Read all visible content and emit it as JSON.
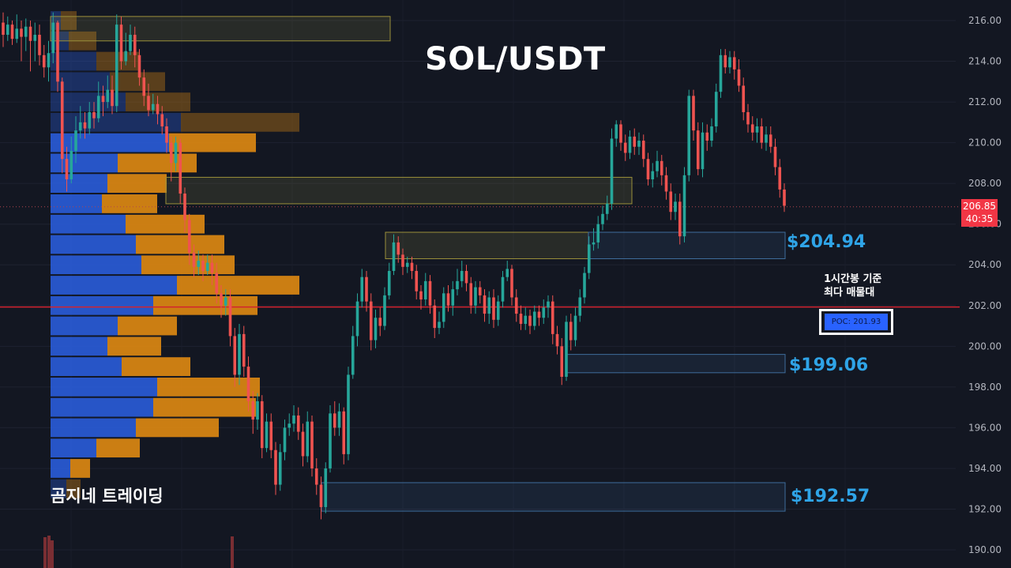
{
  "chart_data": {
    "type": "candlestick",
    "title": "SOL/USDT",
    "y_axis": {
      "ticks": [
        "216.00",
        "214.00",
        "212.00",
        "210.00",
        "208.00",
        "206.00",
        "204.00",
        "202.00",
        "200.00",
        "198.00",
        "196.00",
        "194.00",
        "192.00",
        "190.00"
      ],
      "tick_values": [
        216,
        214,
        212,
        210,
        208,
        206,
        204,
        202,
        200,
        198,
        196,
        194,
        192,
        190
      ],
      "range": [
        189.5,
        217
      ],
      "side": "right"
    },
    "last_price": {
      "value": "206.85",
      "countdown": "40:35",
      "price": 206.85
    },
    "poc": {
      "label": "POC: 201.93",
      "price": 201.93,
      "note_line1": "1시간봉 기준",
      "note_line2": "최다 매물대"
    },
    "levels": [
      {
        "label": "$204.94",
        "price": 204.94
      },
      {
        "label": "$199.06",
        "price": 199.06
      },
      {
        "label": "$192.57",
        "price": 192.57
      }
    ],
    "zones": [
      {
        "kind": "resistance",
        "from": 215.0,
        "to": 216.2
      },
      {
        "kind": "resistance",
        "from": 207.0,
        "to": 208.3
      },
      {
        "kind": "resistance",
        "from": 204.3,
        "to": 205.6
      },
      {
        "kind": "support",
        "from": 204.3,
        "to": 205.6
      },
      {
        "kind": "support",
        "from": 198.7,
        "to": 199.6
      },
      {
        "kind": "support",
        "from": 191.9,
        "to": 193.3
      }
    ],
    "volume_profile": [
      {
        "price": 216.0,
        "buy": 13,
        "sell": 20
      },
      {
        "price": 215.0,
        "buy": 23,
        "sell": 35
      },
      {
        "price": 214.0,
        "buy": 58,
        "sell": 55
      },
      {
        "price": 213.0,
        "buy": 75,
        "sell": 70
      },
      {
        "price": 212.0,
        "buy": 95,
        "sell": 82
      },
      {
        "price": 211.0,
        "buy": 165,
        "sell": 150
      },
      {
        "price": 210.0,
        "buy": 150,
        "sell": 110
      },
      {
        "price": 209.0,
        "buy": 85,
        "sell": 100
      },
      {
        "price": 208.0,
        "buy": 72,
        "sell": 75
      },
      {
        "price": 207.0,
        "buy": 65,
        "sell": 70
      },
      {
        "price": 206.0,
        "buy": 95,
        "sell": 100
      },
      {
        "price": 205.0,
        "buy": 108,
        "sell": 112
      },
      {
        "price": 204.0,
        "buy": 115,
        "sell": 118
      },
      {
        "price": 203.0,
        "buy": 160,
        "sell": 155
      },
      {
        "price": 202.0,
        "buy": 130,
        "sell": 132
      },
      {
        "price": 201.0,
        "buy": 85,
        "sell": 75
      },
      {
        "price": 200.0,
        "buy": 72,
        "sell": 68
      },
      {
        "price": 199.0,
        "buy": 90,
        "sell": 87
      },
      {
        "price": 198.0,
        "buy": 135,
        "sell": 130
      },
      {
        "price": 197.0,
        "buy": 130,
        "sell": 130
      },
      {
        "price": 196.0,
        "buy": 108,
        "sell": 105
      },
      {
        "price": 195.0,
        "buy": 58,
        "sell": 55
      },
      {
        "price": 194.0,
        "buy": 25,
        "sell": 25
      },
      {
        "price": 193.0,
        "buy": 20,
        "sell": 18
      }
    ],
    "candles": [
      [
        215.9,
        215.3,
        216.4,
        214.7
      ],
      [
        215.3,
        215.8,
        216.2,
        215.0
      ],
      [
        215.8,
        215.1,
        216.0,
        214.8
      ],
      [
        215.1,
        215.6,
        216.3,
        214.9
      ],
      [
        215.6,
        215.2,
        216.0,
        214.0
      ],
      [
        215.2,
        215.7,
        216.1,
        214.5
      ],
      [
        215.7,
        215.0,
        216.0,
        213.5
      ],
      [
        215.0,
        215.3,
        215.9,
        214.0
      ],
      [
        215.3,
        214.3,
        215.8,
        213.8
      ],
      [
        214.3,
        213.7,
        214.8,
        213.2
      ],
      [
        213.7,
        214.4,
        215.0,
        213.0
      ],
      [
        214.4,
        215.9,
        216.4,
        213.9
      ],
      [
        215.9,
        213.0,
        216.0,
        212.5
      ],
      [
        213.0,
        209.2,
        213.2,
        208.5
      ],
      [
        209.2,
        208.2,
        209.8,
        207.6
      ],
      [
        208.2,
        209.6,
        210.3,
        208.0
      ],
      [
        209.6,
        210.6,
        211.3,
        209.0
      ],
      [
        210.6,
        211.0,
        211.8,
        210.2
      ],
      [
        211.0,
        210.7,
        211.5,
        210.2
      ],
      [
        210.7,
        211.5,
        212.0,
        210.4
      ],
      [
        211.5,
        211.2,
        212.0,
        210.7
      ],
      [
        211.2,
        212.3,
        213.0,
        211.0
      ],
      [
        212.3,
        212.0,
        212.8,
        211.3
      ],
      [
        212.0,
        212.6,
        213.3,
        211.7
      ],
      [
        212.6,
        211.8,
        213.3,
        211.4
      ],
      [
        211.8,
        215.8,
        216.3,
        211.5
      ],
      [
        215.8,
        214.0,
        216.2,
        213.6
      ],
      [
        214.0,
        214.5,
        215.4,
        213.8
      ],
      [
        214.5,
        215.3,
        215.8,
        214.3
      ],
      [
        215.3,
        214.3,
        215.7,
        213.7
      ],
      [
        214.3,
        213.2,
        214.6,
        212.8
      ],
      [
        213.2,
        212.3,
        213.6,
        211.8
      ],
      [
        212.3,
        211.6,
        212.9,
        211.3
      ],
      [
        211.6,
        211.9,
        212.4,
        211.4
      ],
      [
        211.9,
        211.4,
        212.3,
        210.9
      ],
      [
        211.4,
        210.8,
        211.8,
        210.4
      ],
      [
        210.8,
        210.0,
        211.2,
        209.5
      ],
      [
        210.0,
        209.0,
        210.3,
        208.1
      ],
      [
        209.0,
        210.0,
        210.3,
        208.6
      ],
      [
        210.0,
        207.5,
        210.2,
        207.0
      ],
      [
        207.5,
        206.2,
        207.8,
        205.6
      ],
      [
        206.2,
        204.6,
        206.5,
        204.0
      ],
      [
        204.6,
        203.9,
        205.0,
        203.4
      ],
      [
        203.9,
        204.2,
        204.7,
        203.5
      ],
      [
        204.2,
        203.7,
        204.5,
        203.2
      ],
      [
        203.7,
        204.1,
        204.5,
        203.5
      ],
      [
        204.1,
        203.6,
        204.5,
        203.0
      ],
      [
        203.6,
        202.6,
        204.1,
        202.1
      ],
      [
        202.6,
        202.0,
        203.0,
        201.4
      ],
      [
        202.0,
        202.4,
        202.8,
        201.5
      ],
      [
        202.4,
        200.5,
        202.8,
        200.0
      ],
      [
        200.5,
        198.6,
        200.9,
        198.0
      ],
      [
        198.6,
        200.6,
        201.1,
        198.1
      ],
      [
        200.6,
        199.0,
        201.0,
        198.5
      ],
      [
        199.0,
        197.3,
        199.5,
        196.8
      ],
      [
        197.3,
        196.4,
        197.8,
        195.7
      ],
      [
        196.4,
        197.3,
        197.7,
        195.9
      ],
      [
        197.3,
        195.0,
        197.6,
        194.5
      ],
      [
        195.0,
        196.3,
        196.7,
        194.8
      ],
      [
        196.3,
        194.9,
        196.7,
        194.5
      ],
      [
        194.9,
        193.2,
        195.3,
        192.7
      ],
      [
        193.2,
        194.8,
        195.2,
        192.9
      ],
      [
        194.8,
        196.0,
        196.4,
        194.4
      ],
      [
        196.0,
        196.2,
        196.7,
        195.6
      ],
      [
        196.2,
        196.6,
        197.1,
        195.8
      ],
      [
        196.6,
        195.8,
        197.0,
        195.4
      ],
      [
        195.8,
        194.6,
        196.2,
        194.1
      ],
      [
        194.6,
        196.3,
        196.8,
        194.3
      ],
      [
        196.3,
        194.0,
        196.6,
        193.6
      ],
      [
        194.0,
        193.2,
        194.5,
        192.7
      ],
      [
        193.2,
        192.1,
        193.6,
        191.5
      ],
      [
        192.1,
        194.0,
        194.3,
        191.8
      ],
      [
        194.0,
        196.7,
        197.1,
        193.8
      ],
      [
        196.7,
        196.0,
        197.3,
        195.6
      ],
      [
        196.0,
        196.8,
        197.2,
        195.6
      ],
      [
        196.8,
        194.7,
        197.0,
        194.2
      ],
      [
        194.7,
        198.6,
        199.0,
        194.4
      ],
      [
        198.6,
        200.5,
        201.0,
        198.4
      ],
      [
        200.5,
        202.2,
        202.6,
        200.0
      ],
      [
        202.2,
        203.4,
        203.8,
        201.9
      ],
      [
        203.4,
        202.2,
        203.7,
        201.7
      ],
      [
        202.2,
        200.3,
        202.6,
        199.8
      ],
      [
        200.3,
        201.4,
        201.8,
        199.9
      ],
      [
        201.4,
        201.0,
        201.9,
        200.5
      ],
      [
        201.0,
        202.5,
        202.9,
        200.8
      ],
      [
        202.5,
        203.7,
        204.1,
        202.3
      ],
      [
        203.7,
        205.1,
        205.5,
        203.5
      ],
      [
        205.1,
        204.5,
        205.4,
        204.1
      ],
      [
        204.5,
        203.9,
        204.8,
        203.5
      ],
      [
        203.9,
        204.1,
        204.4,
        203.6
      ],
      [
        204.1,
        203.7,
        204.4,
        203.3
      ],
      [
        203.7,
        202.7,
        204.0,
        202.3
      ],
      [
        202.7,
        202.3,
        203.0,
        201.8
      ],
      [
        202.3,
        203.2,
        203.6,
        202.0
      ],
      [
        203.2,
        202.0,
        203.5,
        201.6
      ],
      [
        202.0,
        200.9,
        202.3,
        200.4
      ],
      [
        200.9,
        201.2,
        201.7,
        200.6
      ],
      [
        201.2,
        202.6,
        202.9,
        200.9
      ],
      [
        202.6,
        202.0,
        203.0,
        201.7
      ],
      [
        202.0,
        202.8,
        203.2,
        201.5
      ],
      [
        202.8,
        203.2,
        203.8,
        202.5
      ],
      [
        203.2,
        203.7,
        204.2,
        202.9
      ],
      [
        203.7,
        203.1,
        204.0,
        202.7
      ],
      [
        203.1,
        202.0,
        203.4,
        201.6
      ],
      [
        202.0,
        202.9,
        203.2,
        201.6
      ],
      [
        202.9,
        202.5,
        203.2,
        202.1
      ],
      [
        202.5,
        201.6,
        202.8,
        201.2
      ],
      [
        201.6,
        202.4,
        202.7,
        201.1
      ],
      [
        202.4,
        201.3,
        202.8,
        200.9
      ],
      [
        201.3,
        202.2,
        202.5,
        201.0
      ],
      [
        202.2,
        203.4,
        203.7,
        201.9
      ],
      [
        203.4,
        203.8,
        204.2,
        203.2
      ],
      [
        203.8,
        202.4,
        204.0,
        202.0
      ],
      [
        202.4,
        201.6,
        202.8,
        201.2
      ],
      [
        201.6,
        201.1,
        202.0,
        200.8
      ],
      [
        201.1,
        201.5,
        201.9,
        200.8
      ],
      [
        201.5,
        201.0,
        201.8,
        200.6
      ],
      [
        201.0,
        201.7,
        202.0,
        200.8
      ],
      [
        201.7,
        201.4,
        202.0,
        201.0
      ],
      [
        201.4,
        201.9,
        202.3,
        201.1
      ],
      [
        201.9,
        202.2,
        202.5,
        201.4
      ],
      [
        202.2,
        200.6,
        202.5,
        200.1
      ],
      [
        200.6,
        200.0,
        201.0,
        199.6
      ],
      [
        200.0,
        198.5,
        200.4,
        198.1
      ],
      [
        198.5,
        201.2,
        201.5,
        198.3
      ],
      [
        201.2,
        200.3,
        201.6,
        199.8
      ],
      [
        200.3,
        201.5,
        201.9,
        200.0
      ],
      [
        201.5,
        202.4,
        202.8,
        201.2
      ],
      [
        202.4,
        203.6,
        203.9,
        202.1
      ],
      [
        203.6,
        205.0,
        205.4,
        203.3
      ],
      [
        205.0,
        205.1,
        205.8,
        204.7
      ],
      [
        205.1,
        206.0,
        206.4,
        204.8
      ],
      [
        206.0,
        206.5,
        206.9,
        205.7
      ],
      [
        206.5,
        207.0,
        207.4,
        206.2
      ],
      [
        207.0,
        210.2,
        210.7,
        206.7
      ],
      [
        210.2,
        210.9,
        211.1,
        209.8
      ],
      [
        210.9,
        210.0,
        211.1,
        209.6
      ],
      [
        210.0,
        209.5,
        210.4,
        209.1
      ],
      [
        209.5,
        210.3,
        210.6,
        209.2
      ],
      [
        210.3,
        209.8,
        210.7,
        209.4
      ],
      [
        209.8,
        210.1,
        210.5,
        209.4
      ],
      [
        210.1,
        209.2,
        210.4,
        208.8
      ],
      [
        209.2,
        208.2,
        209.5,
        207.9
      ],
      [
        208.2,
        208.6,
        209.0,
        207.8
      ],
      [
        208.6,
        209.1,
        209.6,
        208.3
      ],
      [
        209.1,
        208.4,
        209.4,
        207.9
      ],
      [
        208.4,
        207.6,
        208.8,
        207.2
      ],
      [
        207.6,
        206.6,
        208.0,
        206.2
      ],
      [
        206.6,
        207.1,
        207.5,
        206.2
      ],
      [
        207.1,
        205.4,
        207.5,
        205.0
      ],
      [
        205.4,
        208.4,
        208.8,
        205.1
      ],
      [
        208.4,
        212.3,
        212.6,
        208.1
      ],
      [
        212.3,
        210.6,
        212.6,
        210.1
      ],
      [
        210.6,
        208.7,
        211.0,
        208.4
      ],
      [
        208.7,
        210.5,
        211.0,
        208.3
      ],
      [
        210.5,
        210.1,
        210.9,
        209.6
      ],
      [
        210.1,
        210.8,
        211.2,
        209.8
      ],
      [
        210.8,
        212.5,
        212.9,
        210.5
      ],
      [
        212.5,
        214.3,
        214.6,
        212.2
      ],
      [
        214.3,
        213.7,
        214.6,
        213.4
      ],
      [
        213.7,
        214.2,
        214.5,
        213.4
      ],
      [
        214.2,
        213.6,
        214.5,
        213.1
      ],
      [
        213.6,
        212.8,
        214.1,
        212.5
      ],
      [
        212.8,
        211.5,
        213.2,
        211.1
      ],
      [
        211.5,
        210.9,
        211.9,
        210.5
      ],
      [
        210.9,
        210.5,
        211.3,
        210.1
      ],
      [
        210.5,
        210.8,
        211.2,
        210.0
      ],
      [
        210.8,
        210.0,
        211.2,
        209.7
      ],
      [
        210.0,
        210.4,
        210.8,
        209.6
      ],
      [
        210.4,
        209.8,
        210.8,
        209.5
      ],
      [
        209.8,
        208.8,
        210.2,
        208.4
      ],
      [
        208.8,
        207.7,
        209.2,
        207.3
      ],
      [
        207.7,
        206.9,
        208.0,
        206.6
      ]
    ]
  }
}
